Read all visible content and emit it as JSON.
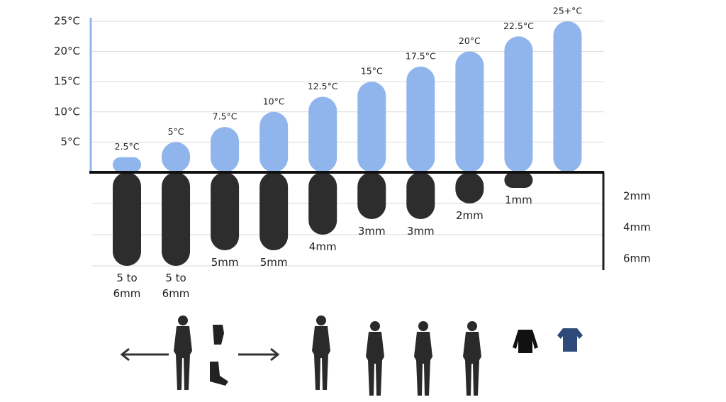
{
  "chart_data": {
    "type": "bar",
    "ylim": [
      0,
      25
    ],
    "yticks": [
      {
        "value": 5,
        "label": "5°C"
      },
      {
        "value": 10,
        "label": "10°C"
      },
      {
        "value": 15,
        "label": "15°C"
      },
      {
        "value": 20,
        "label": "20°C"
      },
      {
        "value": 25,
        "label": "25°C"
      }
    ],
    "y2lim": [
      0,
      6
    ],
    "y2ticks": [
      {
        "value": 2,
        "label": "2mm"
      },
      {
        "value": 4,
        "label": "4mm"
      },
      {
        "value": 6,
        "label": "6mm"
      }
    ],
    "grid": true,
    "series": [
      {
        "color": "#8fb5ec",
        "values": [
          2.5,
          5,
          7.5,
          10,
          12.5,
          15,
          17.5,
          20,
          22.5,
          25
        ],
        "value_labels": [
          "2.5°C",
          "5°C",
          "7.5°C",
          "10°C",
          "12.5°C",
          "15°C",
          "17.5°C",
          "20°C",
          "22.5°C",
          "25+°C"
        ]
      },
      {
        "color": "#2d2d2d",
        "axis": "y2",
        "values": [
          6,
          6,
          5,
          5,
          4,
          3,
          3,
          2,
          1,
          null
        ],
        "value_labels": [
          "5 to 6mm",
          "5 to 6mm",
          "5mm",
          "5mm",
          "4mm",
          "3mm",
          "3mm",
          "2mm",
          "1mm",
          null
        ]
      }
    ]
  }
}
